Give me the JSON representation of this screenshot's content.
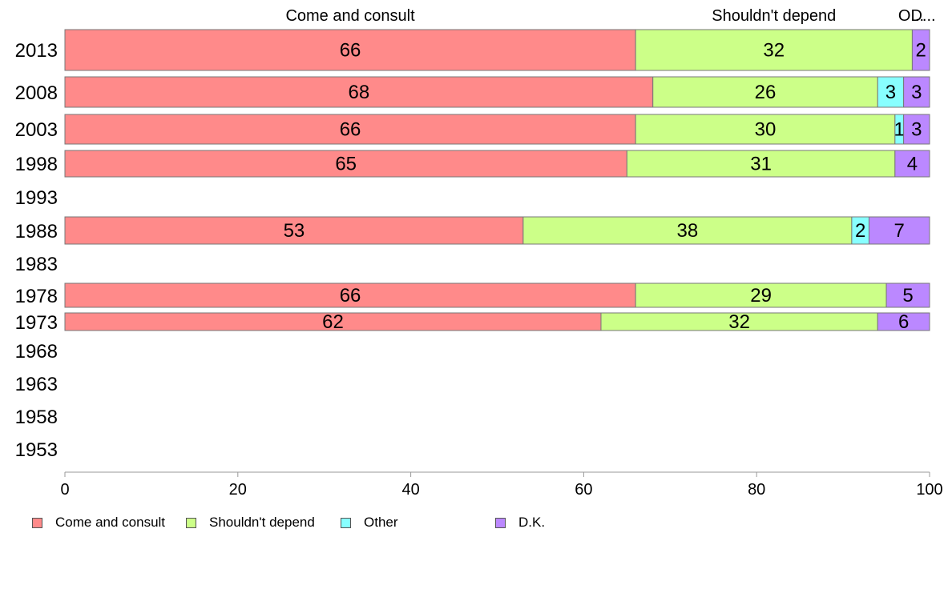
{
  "chart_data": {
    "type": "bar",
    "orientation": "horizontal",
    "stacked": true,
    "categories": [
      "2013",
      "2008",
      "2003",
      "1998",
      "1993",
      "1988",
      "1983",
      "1978",
      "1973",
      "1968",
      "1963",
      "1958",
      "1953"
    ],
    "series": [
      {
        "name": "Come and consult",
        "color": "#ff8a8a",
        "values": [
          66,
          68,
          66,
          65,
          null,
          53,
          null,
          66,
          62,
          null,
          null,
          null,
          null
        ]
      },
      {
        "name": "Shouldn't depend",
        "color": "#ccff88",
        "values": [
          32,
          26,
          30,
          31,
          null,
          38,
          null,
          29,
          32,
          null,
          null,
          null,
          null
        ]
      },
      {
        "name": "Other",
        "color": "#88ffff",
        "values": [
          null,
          3,
          1,
          null,
          null,
          2,
          null,
          null,
          null,
          null,
          null,
          null,
          null
        ]
      },
      {
        "name": "D.K.",
        "color": "#bb88ff",
        "values": [
          2,
          3,
          3,
          4,
          null,
          7,
          null,
          5,
          6,
          null,
          null,
          null,
          null
        ]
      }
    ],
    "top_labels": [
      "Come and consult",
      "Shouldn't depend",
      "O...",
      "D..."
    ],
    "xlim": [
      0,
      100
    ],
    "xticks": [
      0,
      20,
      40,
      60,
      80,
      100
    ],
    "grid": false,
    "legend_position": "bottom-left"
  }
}
